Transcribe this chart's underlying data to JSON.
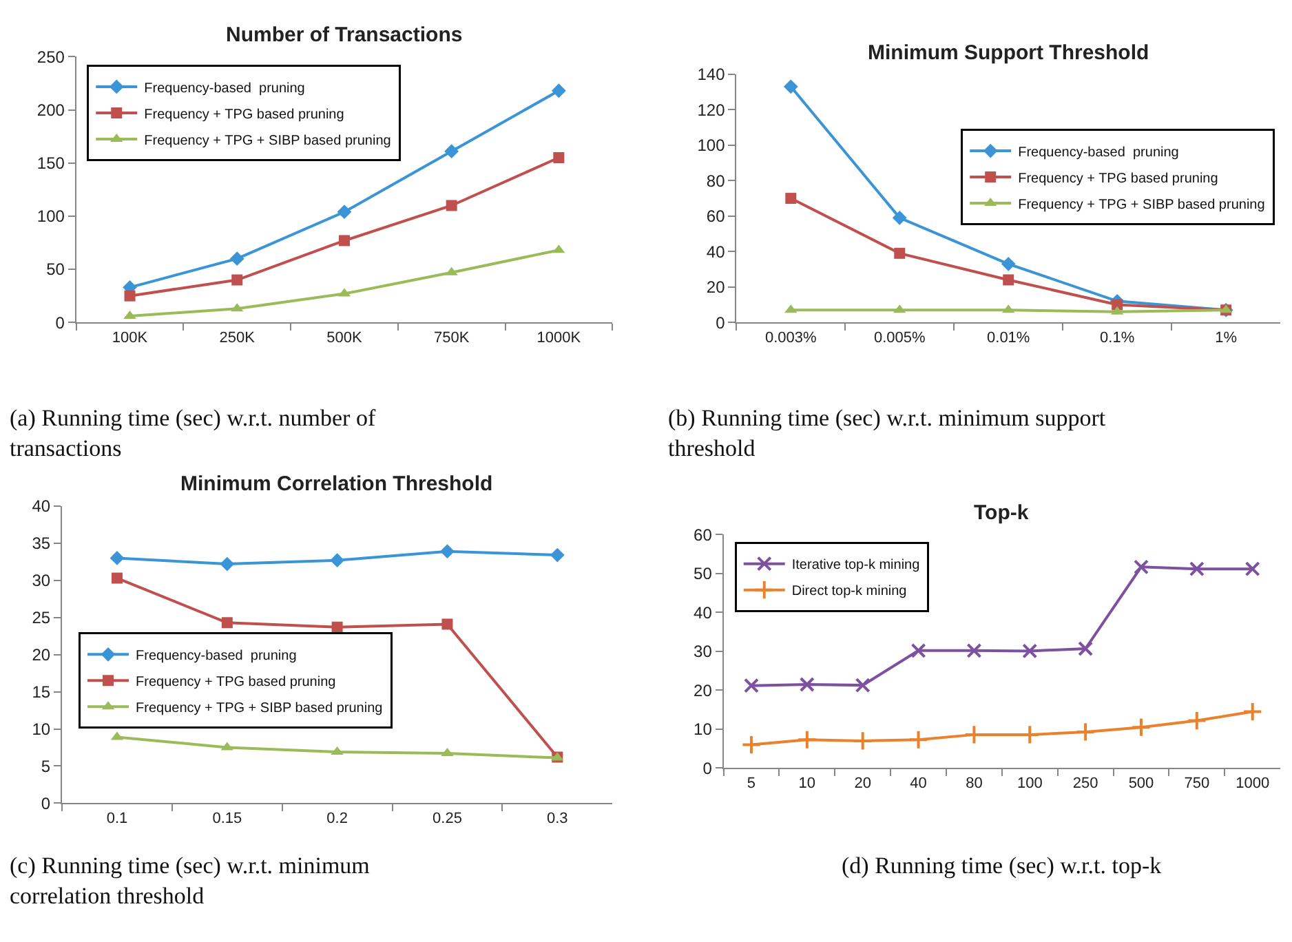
{
  "chart_data": [
    {
      "type": "line",
      "title": "Number of Transactions",
      "categories": [
        "100K",
        "250K",
        "500K",
        "750K",
        "1000K"
      ],
      "ylim": [
        0,
        250
      ],
      "yticks": [
        0,
        50,
        100,
        150,
        200,
        250
      ],
      "grid": false,
      "legend": "top left",
      "series": [
        {
          "name": "Frequency-based  pruning",
          "color": "#3a94d6",
          "marker": "diamond",
          "values": [
            33,
            60,
            104,
            161,
            218
          ]
        },
        {
          "name": "Frequency + TPG based pruning",
          "color": "#c0504d",
          "marker": "square",
          "values": [
            25,
            40,
            77,
            110,
            155
          ]
        },
        {
          "name": "Frequency + TPG + SIBP based pruning",
          "color": "#9bbb59",
          "marker": "triangle",
          "values": [
            6,
            13,
            27,
            47,
            68
          ]
        }
      ],
      "annotations": [
        "(a) Running time (sec) w.r.t. number of transactions"
      ]
    },
    {
      "type": "line",
      "title": "Minimum Support Threshold",
      "categories": [
        "0.003%",
        "0.005%",
        "0.01%",
        "0.1%",
        "1%"
      ],
      "ylim": [
        0,
        140
      ],
      "yticks": [
        0,
        20,
        40,
        60,
        80,
        100,
        120,
        140
      ],
      "grid": false,
      "legend": "top right",
      "series": [
        {
          "name": "Frequency-based  pruning",
          "color": "#3a94d6",
          "marker": "diamond",
          "values": [
            133,
            59,
            33,
            12,
            7
          ]
        },
        {
          "name": "Frequency + TPG based pruning",
          "color": "#c0504d",
          "marker": "square",
          "values": [
            70,
            39,
            24,
            10,
            7
          ]
        },
        {
          "name": "Frequency + TPG + SIBP based pruning",
          "color": "#9bbb59",
          "marker": "triangle",
          "values": [
            7,
            7,
            7,
            6,
            7
          ]
        }
      ],
      "annotations": [
        "(b) Running time (sec) w.r.t. minimum support threshold"
      ]
    },
    {
      "type": "line",
      "title": "Minimum Correlation Threshold",
      "categories": [
        "0.1",
        "0.15",
        "0.2",
        "0.25",
        "0.3"
      ],
      "ylim": [
        0,
        40
      ],
      "yticks": [
        0,
        5,
        10,
        15,
        20,
        25,
        30,
        35,
        40
      ],
      "grid": false,
      "legend": "left",
      "series": [
        {
          "name": "Frequency-based  pruning",
          "color": "#3a94d6",
          "marker": "diamond",
          "values": [
            33,
            32.2,
            32.7,
            33.9,
            33.4
          ]
        },
        {
          "name": "Frequency + TPG based pruning",
          "color": "#c0504d",
          "marker": "square",
          "values": [
            30.3,
            24.3,
            23.7,
            24.1,
            6.2
          ]
        },
        {
          "name": "Frequency + TPG + SIBP based pruning",
          "color": "#9bbb59",
          "marker": "triangle",
          "values": [
            8.9,
            7.5,
            6.9,
            6.7,
            6.1
          ]
        }
      ],
      "annotations": [
        "(c) Running time (sec) w.r.t. minimum correlation threshold"
      ]
    },
    {
      "type": "line",
      "title": "Top-k",
      "categories": [
        "5",
        "10",
        "20",
        "40",
        "80",
        "100",
        "250",
        "500",
        "750",
        "1000"
      ],
      "ylim": [
        0,
        60
      ],
      "yticks": [
        0,
        10,
        20,
        30,
        40,
        50,
        60
      ],
      "grid": false,
      "legend": "top left",
      "series": [
        {
          "name": "Iterative top-k mining",
          "color": "#7e50a0",
          "marker": "cross",
          "values": [
            21.2,
            21.5,
            21.3,
            30.2,
            30.2,
            30.1,
            30.7,
            51.7,
            51.2,
            51.2
          ]
        },
        {
          "name": "Direct top-k mining",
          "color": "#e9822e",
          "marker": "plus",
          "values": [
            6,
            7.3,
            7,
            7.3,
            8.6,
            8.6,
            9.3,
            10.5,
            12.2,
            14.5
          ]
        }
      ],
      "annotations": [
        "(d) Running time (sec) w.r.t. top-k"
      ]
    }
  ]
}
